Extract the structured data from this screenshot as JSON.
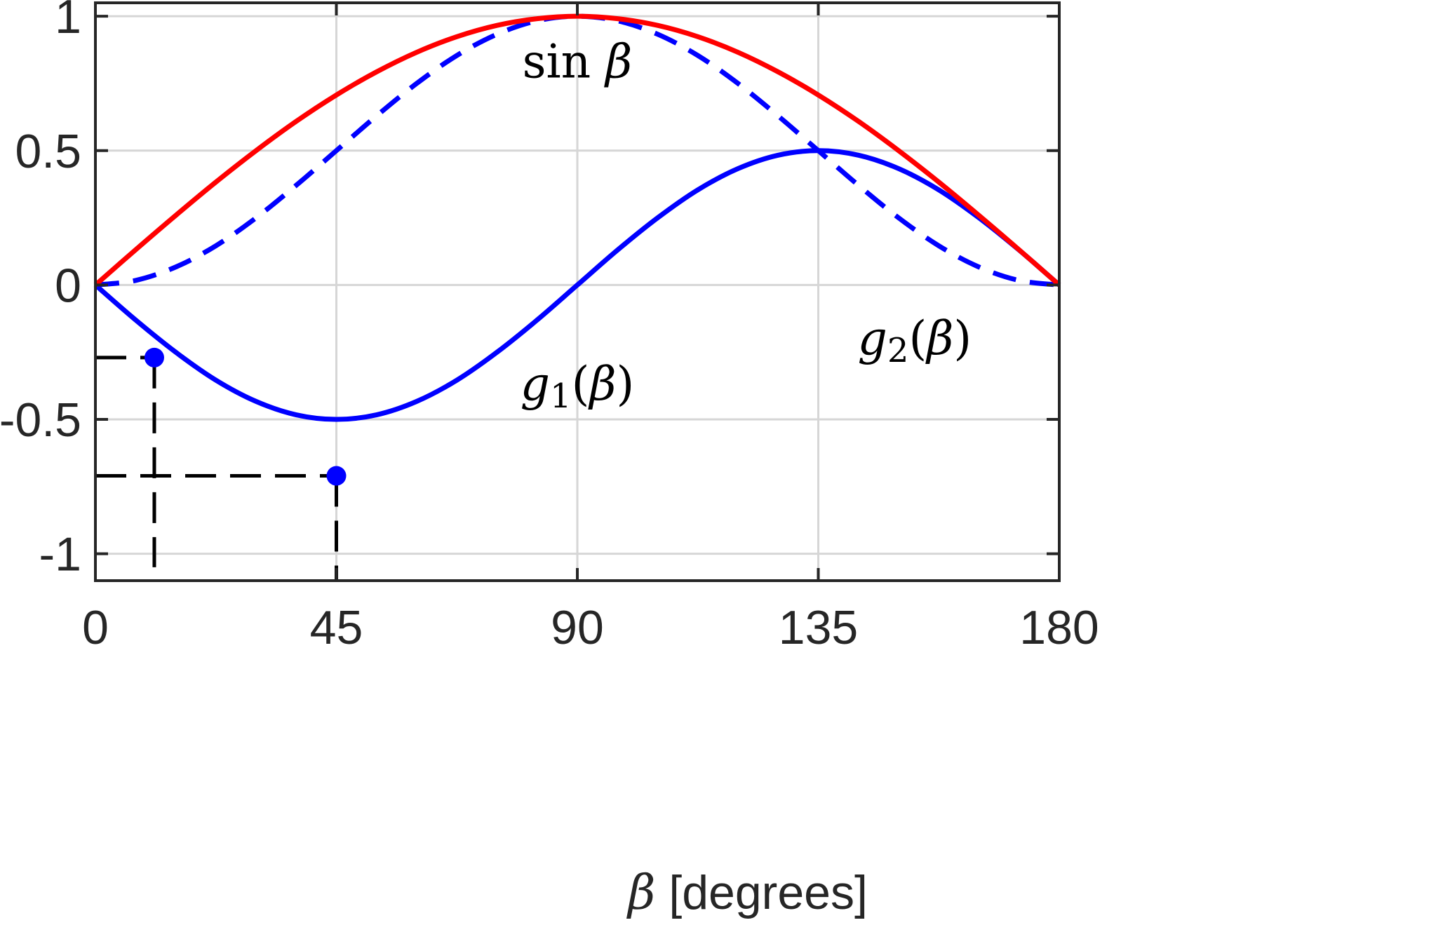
{
  "chart_data": {
    "type": "line",
    "xlabel_symbol": "β",
    "xlabel_text": " [degrees]",
    "xlim": [
      0,
      180
    ],
    "ylim": [
      -1.1,
      1.05
    ],
    "x_ticks": [
      0,
      45,
      90,
      135,
      180
    ],
    "y_ticks": [
      -1,
      -0.5,
      0,
      0.5,
      1
    ],
    "x_tick_labels": [
      "0",
      "45",
      "90",
      "135",
      "180"
    ],
    "y_tick_labels": [
      "-1",
      "-0.5",
      "0",
      "0.5",
      "1"
    ],
    "grid": true,
    "series": [
      {
        "name": "sin β",
        "color": "#ff0000",
        "style": "solid",
        "x": [
          0,
          7.5,
          15,
          22.5,
          30,
          37.5,
          45,
          52.5,
          60,
          67.5,
          75,
          82.5,
          90,
          97.5,
          105,
          112.5,
          120,
          127.5,
          135,
          142.5,
          150,
          157.5,
          165,
          172.5,
          180
        ],
        "y": [
          0,
          0.131,
          0.259,
          0.383,
          0.5,
          0.609,
          0.707,
          0.793,
          0.866,
          0.924,
          0.966,
          0.991,
          1,
          0.991,
          0.966,
          0.924,
          0.866,
          0.793,
          0.707,
          0.609,
          0.5,
          0.383,
          0.259,
          0.131,
          0
        ]
      },
      {
        "name": "g1(β)",
        "color": "#0000ff",
        "style": "solid",
        "x": [
          0,
          7.5,
          15,
          22.5,
          30,
          37.5,
          45,
          52.5,
          60,
          67.5,
          75,
          82.5,
          90,
          97.5,
          105,
          112.5,
          120,
          127.5,
          135,
          142.5,
          150,
          157.5,
          165,
          172.5,
          180
        ],
        "y": [
          0,
          -0.13,
          -0.25,
          -0.354,
          -0.433,
          -0.483,
          -0.5,
          -0.483,
          -0.433,
          -0.354,
          -0.25,
          -0.13,
          0,
          0.13,
          0.25,
          0.354,
          0.433,
          0.483,
          0.5,
          0.483,
          0.433,
          0.354,
          0.25,
          0.13,
          0
        ]
      },
      {
        "name": "g2(β)",
        "color": "#0000ff",
        "style": "dashed",
        "x": [
          0,
          7.5,
          15,
          22.5,
          30,
          37.5,
          45,
          52.5,
          60,
          67.5,
          75,
          82.5,
          90,
          97.5,
          105,
          112.5,
          120,
          127.5,
          135,
          142.5,
          150,
          157.5,
          165,
          172.5,
          180
        ],
        "y": [
          0,
          0.017,
          0.067,
          0.146,
          0.25,
          0.371,
          0.5,
          0.629,
          0.75,
          0.854,
          0.933,
          0.983,
          1,
          0.983,
          0.933,
          0.854,
          0.75,
          0.629,
          0.5,
          0.371,
          0.25,
          0.146,
          0.067,
          0.017,
          0
        ]
      }
    ],
    "markers": [
      {
        "x": 11,
        "y": -0.27,
        "color": "#0000ff"
      },
      {
        "x": 45,
        "y": -0.71,
        "color": "#0000ff"
      }
    ],
    "reference_lines": [
      {
        "from": [
          0,
          -0.27
        ],
        "to": [
          11,
          -0.27
        ],
        "style": "dashed"
      },
      {
        "from": [
          11,
          -0.27
        ],
        "to": [
          11,
          -1.05
        ],
        "style": "dashed"
      },
      {
        "from": [
          0,
          -0.71
        ],
        "to": [
          45,
          -0.71
        ],
        "style": "dashed"
      },
      {
        "from": [
          45,
          -0.71
        ],
        "to": [
          45,
          -1.1
        ],
        "style": "dashed"
      }
    ],
    "annotations": [
      {
        "series_ref": "sin β",
        "fn": "sin",
        "symbol": "β",
        "x": 90,
        "y": 0.83
      },
      {
        "series_ref": "g1(β)",
        "base": "g",
        "sub": "1",
        "symbol": "β",
        "x": 90,
        "y": -0.37
      },
      {
        "series_ref": "g2(β)",
        "base": "g",
        "sub": "2",
        "symbol": "β",
        "x": 153,
        "y": -0.2
      }
    ]
  }
}
